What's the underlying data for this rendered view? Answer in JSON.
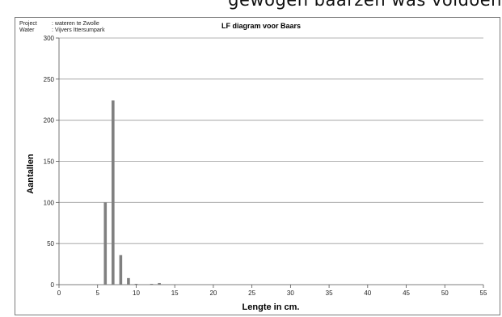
{
  "page_header_fragment": "gewogen baarzen was voldoen",
  "meta": {
    "project_label": "Project",
    "project_value": ": wateren  te Zwolle",
    "water_label": "Water",
    "water_value": ": Vijvers  Ittersumpark"
  },
  "chart_data": {
    "type": "bar",
    "title": "LF diagram voor Baars",
    "xlabel": "Lengte in cm.",
    "ylabel": "Aantallen",
    "xlim": [
      0,
      55
    ],
    "ylim": [
      0,
      300
    ],
    "xticks": [
      0,
      5,
      10,
      15,
      20,
      25,
      30,
      35,
      40,
      45,
      50,
      55
    ],
    "yticks": [
      0,
      50,
      100,
      150,
      200,
      250,
      300
    ],
    "grid": "horizontal",
    "bar_color": "#808080",
    "x": [
      6,
      7,
      8,
      9,
      10,
      12,
      13
    ],
    "values": [
      100,
      224,
      36,
      8,
      1,
      1,
      2
    ]
  }
}
